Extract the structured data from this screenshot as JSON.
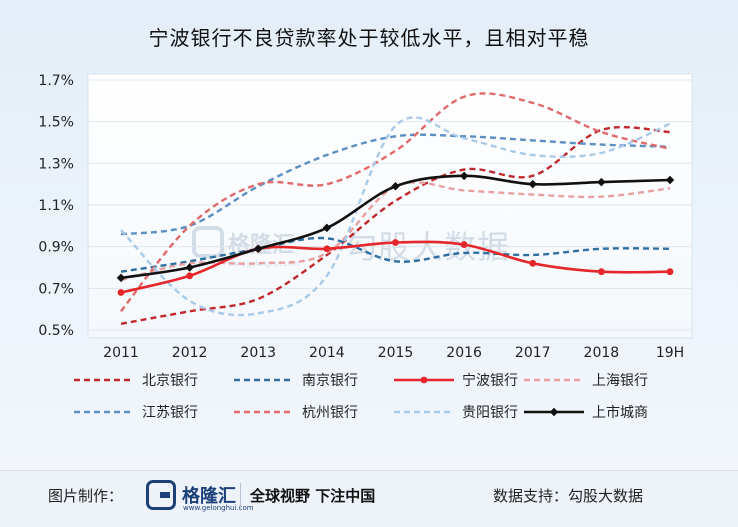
{
  "title": "宁波银行不良贷款率处于较低水平，且相对平稳",
  "footer": {
    "credit_label": "图片制作：",
    "brand_name": "格隆汇",
    "brand_domain": "www.gelonghui.com",
    "slogan": "全球视野 下注中国",
    "source": "数据支持：勾股大数据"
  },
  "watermark": {
    "brand": "格隆汇",
    "domain": "www.gelonghui.com",
    "text": "勾股大数据"
  },
  "chart_data": {
    "type": "line",
    "title": "宁波银行不良贷款率处于较低水平，且相对平稳",
    "x": [
      "2011",
      "2012",
      "2013",
      "2014",
      "2015",
      "2016",
      "2017",
      "2018",
      "19H"
    ],
    "y_ticks": [
      "0.5%",
      "0.7%",
      "0.9%",
      "1.1%",
      "1.3%",
      "1.5%",
      "1.7%"
    ],
    "ylim": [
      0.5,
      1.7
    ],
    "y_unit": "%",
    "legend_position": "bottom",
    "series": [
      {
        "name": "北京银行",
        "color": "#c0282c",
        "style": "dashed",
        "values": [
          0.53,
          0.59,
          0.65,
          0.86,
          1.12,
          1.27,
          1.24,
          1.46,
          1.45
        ]
      },
      {
        "name": "南京银行",
        "color": "#2e6fa3",
        "style": "dashed",
        "values": [
          0.78,
          0.83,
          0.89,
          0.94,
          0.83,
          0.87,
          0.86,
          0.89,
          0.89
        ]
      },
      {
        "name": "宁波银行",
        "color": "#e5262a",
        "style": "solid",
        "marker": "circle",
        "values": [
          0.68,
          0.76,
          0.89,
          0.89,
          0.92,
          0.91,
          0.82,
          0.78,
          0.78
        ]
      },
      {
        "name": "上海银行",
        "color": "#e8a0a0",
        "style": "dashed",
        "values": [
          0.74,
          0.82,
          0.82,
          0.87,
          1.19,
          1.17,
          1.15,
          1.14,
          1.18
        ]
      },
      {
        "name": "江苏银行",
        "color": "#5c8fc4",
        "style": "dashed",
        "values": [
          0.96,
          1.0,
          1.19,
          1.34,
          1.43,
          1.43,
          1.41,
          1.39,
          1.38
        ]
      },
      {
        "name": "杭州银行",
        "color": "#e06a6a",
        "style": "dashed",
        "values": [
          0.59,
          1.0,
          1.2,
          1.2,
          1.36,
          1.62,
          1.59,
          1.45,
          1.37
        ]
      },
      {
        "name": "贵阳银行",
        "color": "#a9c9e8",
        "style": "dashed",
        "values": [
          0.98,
          0.64,
          0.58,
          0.76,
          1.48,
          1.42,
          1.34,
          1.35,
          1.49
        ]
      },
      {
        "name": "上市城商",
        "color": "#111111",
        "style": "solid",
        "marker": "diamond",
        "values": [
          0.75,
          0.8,
          0.89,
          0.99,
          1.19,
          1.24,
          1.2,
          1.21,
          1.22
        ]
      }
    ]
  }
}
